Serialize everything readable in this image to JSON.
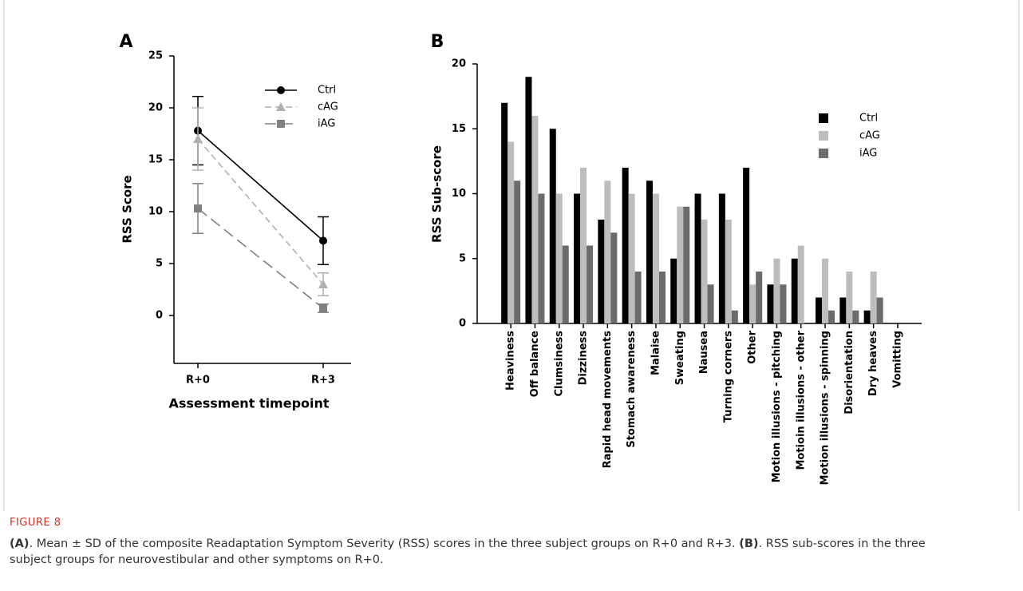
{
  "chart_data": [
    {
      "type": "line",
      "panel": "A",
      "x_label": "Assessment timepoint",
      "y_label": "RSS Score",
      "categories": [
        "R+0",
        "R+3"
      ],
      "ylim": [
        -5,
        25
      ],
      "yticks": [
        0,
        5,
        10,
        15,
        20,
        25
      ],
      "series": [
        {
          "name": "Ctrl",
          "color": "#000000",
          "values": [
            17.8,
            7.2
          ],
          "errors": [
            3.3,
            2.3
          ]
        },
        {
          "name": "cAG",
          "color": "#b0b0b0",
          "values": [
            17,
            3
          ],
          "errors": [
            3,
            1.1
          ]
        },
        {
          "name": "iAG",
          "color": "#808080",
          "values": [
            10.3,
            0.7
          ],
          "errors": [
            2.4,
            0.4
          ]
        }
      ]
    },
    {
      "type": "bar",
      "panel": "B",
      "y_label": "RSS Sub-score",
      "categories": [
        "Heaviness",
        "Off balance",
        "Clumsiness",
        "Dizziness",
        "Rapid head movements",
        "Stomach awareness",
        "Malaise",
        "Sweating",
        "Nausea",
        "Turning corners",
        "Other",
        "Motion illusions - pitching",
        "Motioin illusions - other",
        "Motion illusions - spinning",
        "Disorientation",
        "Dry heaves",
        "Vomitting"
      ],
      "ylim": [
        0,
        20
      ],
      "yticks": [
        0,
        5,
        10,
        15,
        20
      ],
      "series": [
        {
          "name": "Ctrl",
          "color": "#000000",
          "values": [
            17,
            19,
            15,
            10,
            8,
            12,
            11,
            5,
            10,
            10,
            12,
            3,
            5,
            2,
            2,
            1,
            0
          ]
        },
        {
          "name": "cAG",
          "color": "#bdbdbd",
          "values": [
            14,
            16,
            10,
            12,
            11,
            10,
            10,
            9,
            8,
            8,
            3,
            5,
            6,
            5,
            4,
            4,
            0
          ]
        },
        {
          "name": "iAG",
          "color": "#6b6b6b",
          "values": [
            11,
            10,
            6,
            6,
            7,
            4,
            4,
            9,
            3,
            1,
            4,
            3,
            0,
            1,
            1,
            2,
            0
          ]
        }
      ]
    }
  ],
  "caption": {
    "label": "FIGURE 8",
    "a_tag": "(A)",
    "a_text": ". Mean ± SD of the composite Readaptation Symptom Severity (RSS) scores in the three subject groups on R+0 and R+3. ",
    "b_tag": "(B)",
    "b_text": ". RSS sub-scores in the three subject groups for neurovestibular and other symptoms on R+0."
  }
}
